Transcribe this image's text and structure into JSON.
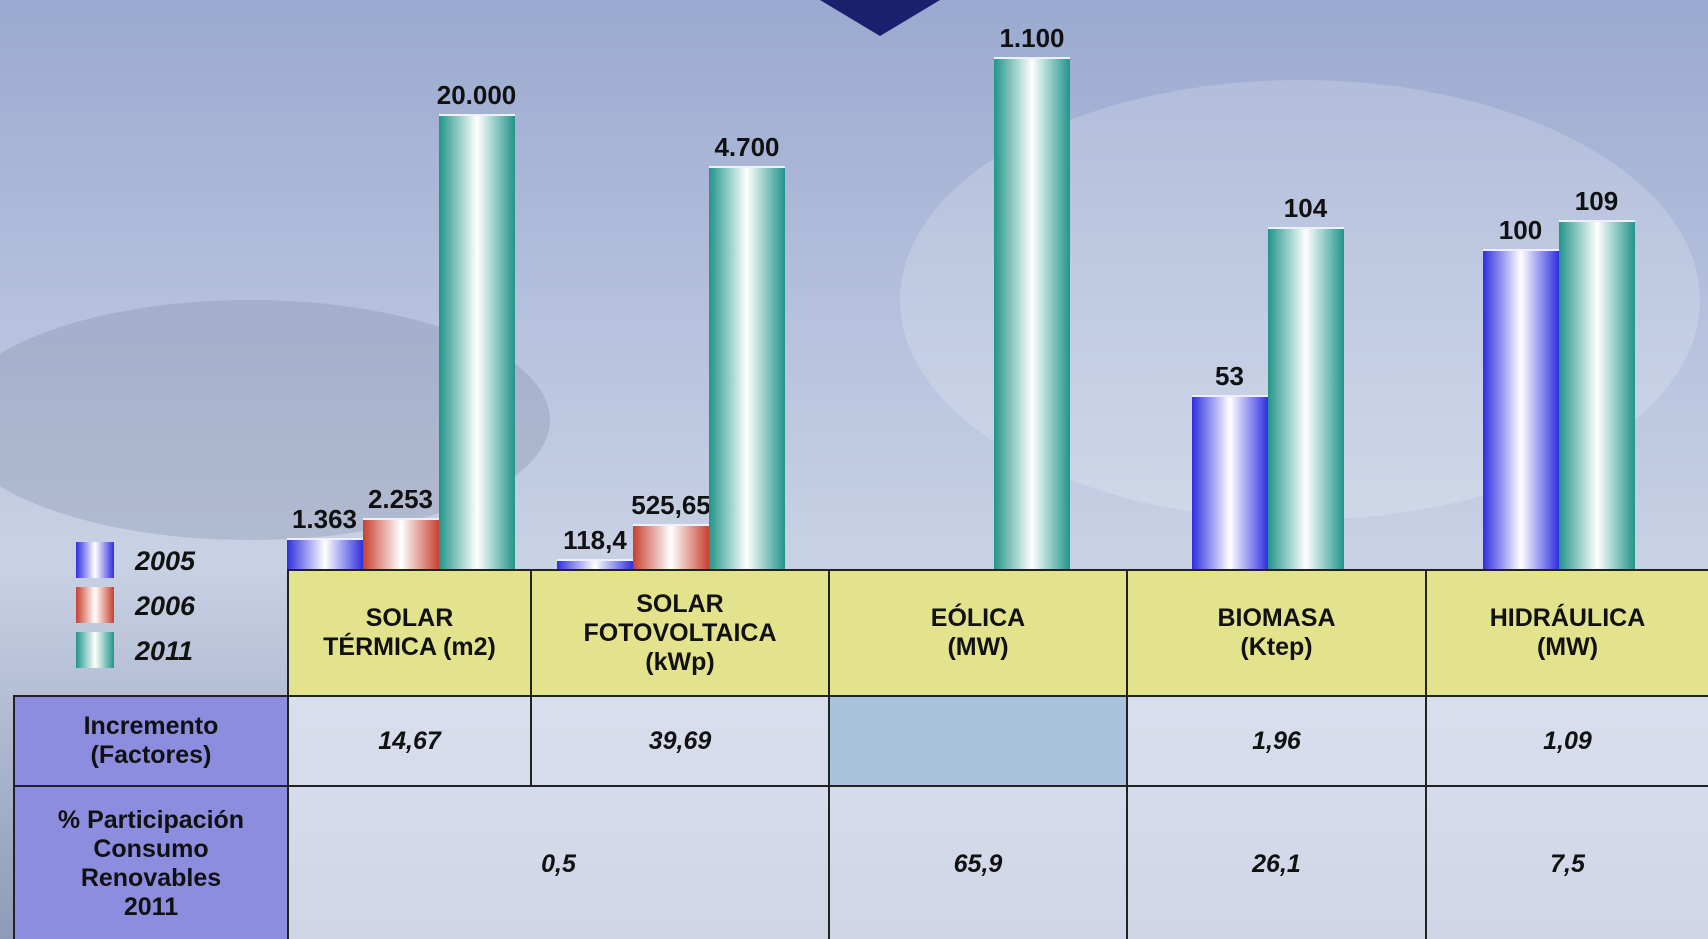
{
  "chart_data": {
    "type": "bar",
    "categories": [
      "SOLAR\nTÉRMICA (m2)",
      "SOLAR\nFOTOVOLTAICA\n(kWp)",
      "EÓLICA\n(MW)",
      "BIOMASA\n(Ktep)",
      "HIDRÁULICA\n(MW)"
    ],
    "series": [
      {
        "name": "2005",
        "color": "#2f2fe0",
        "values": [
          1363,
          118.4,
          null,
          53,
          100
        ],
        "value_labels": [
          "1.363",
          "118,4",
          null,
          "53",
          "100"
        ]
      },
      {
        "name": "2006",
        "color": "#c8402f",
        "values": [
          2253,
          525.65,
          null,
          null,
          null
        ],
        "value_labels": [
          "2.253",
          "525,65",
          null,
          null,
          null
        ]
      },
      {
        "name": "2011",
        "color": "#21958a",
        "values": [
          20000,
          4700,
          1100,
          104,
          109
        ],
        "value_labels": [
          "20.000",
          "4.700",
          "1.100",
          "104",
          "109"
        ]
      }
    ]
  },
  "table": {
    "rows": [
      {
        "label": "Incremento\n(Factores)",
        "values": [
          "14,67",
          "39,69",
          null,
          "1,96",
          "1,09"
        ]
      },
      {
        "label": "% Participación\nConsumo\nRenovables\n2011",
        "values": [
          "0,5",
          "65,9",
          "26,1",
          "7,5"
        ]
      }
    ]
  }
}
